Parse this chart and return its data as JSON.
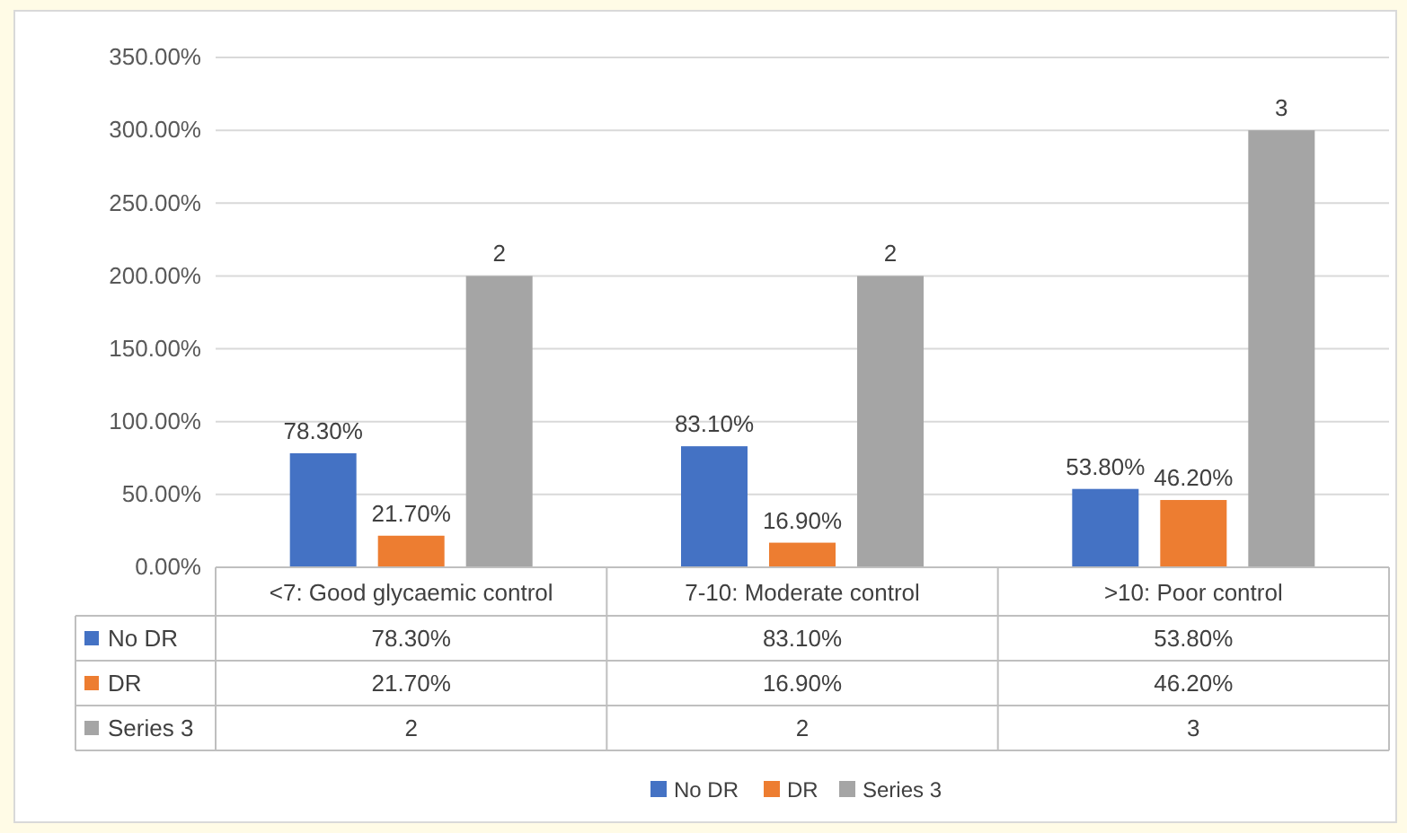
{
  "chart_data": {
    "type": "bar",
    "categories": [
      "<7: Good glycaemic control",
      "7-10: Moderate control",
      ">10: Poor control"
    ],
    "series": [
      {
        "name": "No DR",
        "color": "#4472c4",
        "values": [
          0.783,
          0.831,
          0.538
        ],
        "value_labels": [
          "78.30%",
          "83.10%",
          "53.80%"
        ]
      },
      {
        "name": "DR",
        "color": "#ed7d31",
        "values": [
          0.217,
          0.169,
          0.462
        ],
        "value_labels": [
          "21.70%",
          "16.90%",
          "46.20%"
        ]
      },
      {
        "name": "Series 3",
        "color": "#a5a5a5",
        "values": [
          2,
          2,
          3
        ],
        "value_labels": [
          "2",
          "2",
          "3"
        ]
      }
    ],
    "ylim": [
      0,
      3.5
    ],
    "yticks": [
      {
        "value": 0,
        "label": "0.00%"
      },
      {
        "value": 0.5,
        "label": "50.00%"
      },
      {
        "value": 1,
        "label": "100.00%"
      },
      {
        "value": 1.5,
        "label": "150.00%"
      },
      {
        "value": 2,
        "label": "200.00%"
      },
      {
        "value": 2.5,
        "label": "250.00%"
      },
      {
        "value": 3,
        "label": "300.00%"
      },
      {
        "value": 3.5,
        "label": "350.00%"
      }
    ],
    "grid": "y",
    "legend": "bottom"
  }
}
